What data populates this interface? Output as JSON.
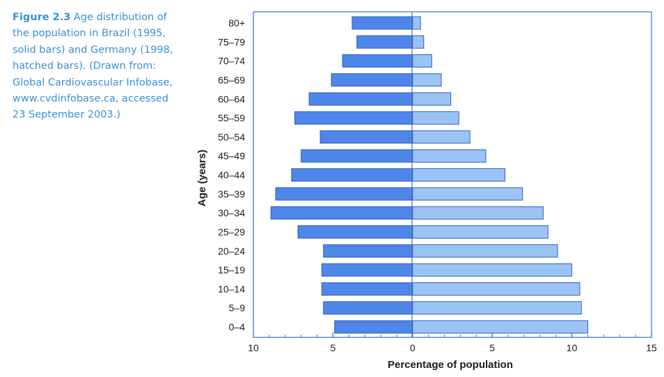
{
  "caption": {
    "figure_number": "Figure 2.3",
    "text": "Age distribution of the population in Brazil (1995, solid bars) and Germany (1998, hatched bars). (Drawn from: Global Cardiovascular Infobase, www.cvdinfobase.ca, accessed 23 September 2003.)"
  },
  "chart_data": {
    "type": "bar",
    "orientation": "horizontal",
    "layout": "population-pyramid",
    "title": "",
    "xlabel": "Percentage of population",
    "ylabel": "Age (years)",
    "xlim": [
      -10,
      15
    ],
    "x_ticks": [
      -10,
      -5,
      0,
      5,
      10,
      15
    ],
    "x_tick_labels": [
      "10",
      "5",
      "0",
      "5",
      "10",
      "15"
    ],
    "categories": [
      "0–4",
      "5–9",
      "10–14",
      "15–19",
      "20–24",
      "25–29",
      "30–34",
      "35–39",
      "40–44",
      "45–49",
      "50–54",
      "55–59",
      "60–64",
      "65–69",
      "70–74",
      "75–79",
      "80+"
    ],
    "series": [
      {
        "side": "left",
        "color": "#4f86ea",
        "values": [
          4.9,
          5.6,
          5.7,
          5.7,
          5.6,
          7.2,
          8.9,
          8.6,
          7.6,
          7.0,
          5.8,
          7.4,
          6.5,
          5.1,
          4.4,
          3.5,
          3.8
        ]
      },
      {
        "side": "right",
        "color": "#9cc3f6",
        "values": [
          11.0,
          10.6,
          10.5,
          10.0,
          9.1,
          8.5,
          8.2,
          6.9,
          5.8,
          4.6,
          3.6,
          2.9,
          2.4,
          1.8,
          1.2,
          0.7,
          0.5
        ]
      }
    ],
    "grid": false,
    "legend": "none"
  }
}
